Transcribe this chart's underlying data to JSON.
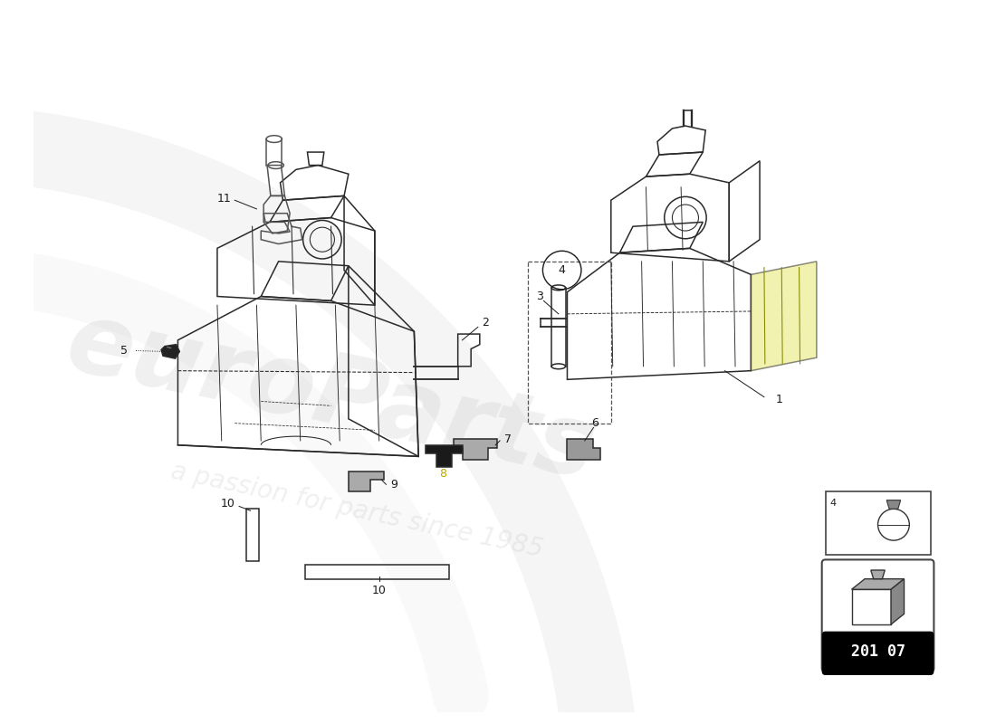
{
  "background_color": "#ffffff",
  "part_number_box": "201 07",
  "figsize": [
    11.0,
    8.0
  ],
  "dpi": 100,
  "label_color": "#1a1a1a",
  "line_color": "#333333",
  "tank_color": "#2a2a2a",
  "watermark_color": "#d0d0d0",
  "watermark_alpha": 0.25
}
